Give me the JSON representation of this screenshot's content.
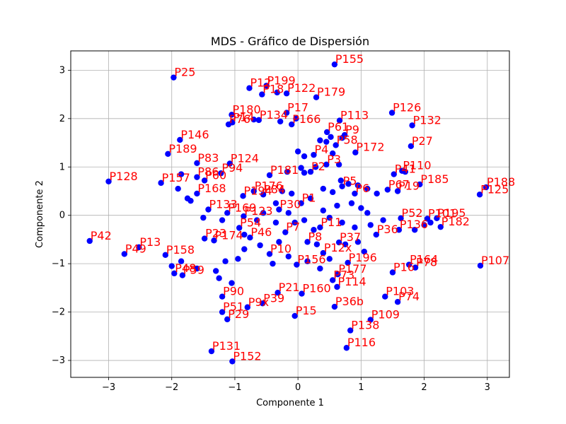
{
  "chart_data": {
    "type": "scatter",
    "title": "MDS - Gráfico de Dispersión",
    "xlabel": "Componente 1",
    "ylabel": "Componente 2",
    "xlim": [
      -3.6,
      3.35
    ],
    "ylim": [
      -3.35,
      3.4
    ],
    "xticks": [
      -3,
      -2,
      -1,
      0,
      1,
      2,
      3
    ],
    "yticks": [
      -3,
      -2,
      -1,
      0,
      1,
      2,
      3
    ],
    "grid": true,
    "marker_color": "#0000ff",
    "label_color": "#ff0000",
    "points": [
      {
        "label": "P155",
        "x": 0.58,
        "y": 3.12
      },
      {
        "label": "P25",
        "x": -1.97,
        "y": 2.85
      },
      {
        "label": "P199",
        "x": -0.5,
        "y": 2.68
      },
      {
        "label": "P12",
        "x": -0.77,
        "y": 2.63
      },
      {
        "label": "P18",
        "x": -0.57,
        "y": 2.5
      },
      {
        "label": "P122",
        "x": -0.18,
        "y": 2.52
      },
      {
        "label": "P179",
        "x": 0.29,
        "y": 2.44
      },
      {
        "label": "P180",
        "x": -1.05,
        "y": 2.08
      },
      {
        "label": "P14",
        "x": -1.04,
        "y": 1.92
      },
      {
        "label": "P76",
        "x": -1.1,
        "y": 1.88
      },
      {
        "label": "P17",
        "x": -0.18,
        "y": 2.12
      },
      {
        "label": "P134",
        "x": -0.62,
        "y": 1.97
      },
      {
        "label": "P166",
        "x": -0.1,
        "y": 1.88
      },
      {
        "label": "P113",
        "x": 0.66,
        "y": 1.96
      },
      {
        "label": "P126",
        "x": 1.49,
        "y": 2.12
      },
      {
        "label": "P132",
        "x": 1.81,
        "y": 1.86
      },
      {
        "label": "P61",
        "x": 0.46,
        "y": 1.72
      },
      {
        "label": "P9",
        "x": 0.74,
        "y": 1.66
      },
      {
        "label": "P146",
        "x": -1.87,
        "y": 1.56
      },
      {
        "label": "P58",
        "x": 0.6,
        "y": 1.45
      },
      {
        "label": "P27",
        "x": 1.79,
        "y": 1.43
      },
      {
        "label": "P189",
        "x": -2.06,
        "y": 1.27
      },
      {
        "label": "P172",
        "x": 0.91,
        "y": 1.3
      },
      {
        "label": "P83",
        "x": -1.6,
        "y": 1.08
      },
      {
        "label": "P124",
        "x": -1.08,
        "y": 1.07
      },
      {
        "label": "P128",
        "x": -3.0,
        "y": 0.7
      },
      {
        "label": "P157",
        "x": -2.17,
        "y": 0.67
      },
      {
        "label": "P94",
        "x": -1.22,
        "y": 0.87
      },
      {
        "label": "P181",
        "x": -0.45,
        "y": 0.83
      },
      {
        "label": "P110",
        "x": 1.65,
        "y": 0.92
      },
      {
        "label": "P41",
        "x": 1.52,
        "y": 0.85
      },
      {
        "label": "P185",
        "x": 1.93,
        "y": 0.64
      },
      {
        "label": "P188",
        "x": 2.98,
        "y": 0.58
      },
      {
        "label": "P125",
        "x": 2.88,
        "y": 0.43
      },
      {
        "label": "P60",
        "x": -1.48,
        "y": 0.72
      },
      {
        "label": "P86",
        "x": -1.6,
        "y": 0.79
      },
      {
        "label": "P84",
        "x": -0.55,
        "y": 0.43
      },
      {
        "label": "P176",
        "x": -0.7,
        "y": 0.5
      },
      {
        "label": "P168",
        "x": -1.6,
        "y": 0.45
      },
      {
        "label": "P67",
        "x": 1.42,
        "y": 0.53
      },
      {
        "label": "P19",
        "x": 1.58,
        "y": 0.5
      },
      {
        "label": "P194",
        "x": -0.87,
        "y": 0.4
      },
      {
        "label": "P133",
        "x": -1.42,
        "y": 0.12
      },
      {
        "label": "P169",
        "x": -1.12,
        "y": 0.05
      },
      {
        "label": "P123",
        "x": -0.86,
        "y": -0.02
      },
      {
        "label": "P52",
        "x": 1.63,
        "y": -0.06
      },
      {
        "label": "P101",
        "x": 2.05,
        "y": -0.07
      },
      {
        "label": "P195",
        "x": 2.2,
        "y": -0.06
      },
      {
        "label": "P182",
        "x": 2.26,
        "y": -0.24
      },
      {
        "label": "P42",
        "x": -3.3,
        "y": -0.53
      },
      {
        "label": "P13",
        "x": -2.52,
        "y": -0.66
      },
      {
        "label": "P49",
        "x": -2.75,
        "y": -0.8
      },
      {
        "label": "P23",
        "x": -1.48,
        "y": -0.48
      },
      {
        "label": "P174",
        "x": -1.33,
        "y": -0.52
      },
      {
        "label": "P54",
        "x": -0.93,
        "y": -0.26
      },
      {
        "label": "P46",
        "x": -0.76,
        "y": -0.46
      },
      {
        "label": "P158",
        "x": -2.1,
        "y": -0.82
      },
      {
        "label": "P48",
        "x": -1.96,
        "y": -1.2
      },
      {
        "label": "P59",
        "x": -1.83,
        "y": -1.24
      },
      {
        "label": "P36",
        "x": 1.24,
        "y": -0.4
      },
      {
        "label": "P136",
        "x": 1.6,
        "y": -0.3
      },
      {
        "label": "P164",
        "x": 1.76,
        "y": -1.02
      },
      {
        "label": "P78",
        "x": 1.86,
        "y": -1.08
      },
      {
        "label": "P107",
        "x": 2.89,
        "y": -1.04
      },
      {
        "label": "P16",
        "x": 1.5,
        "y": -1.18
      },
      {
        "label": "P196",
        "x": 0.79,
        "y": -0.98
      },
      {
        "label": "P177",
        "x": 0.63,
        "y": -1.22
      },
      {
        "label": "P73",
        "x": 0.55,
        "y": -1.34
      },
      {
        "label": "P114",
        "x": 0.62,
        "y": -1.48
      },
      {
        "label": "P103",
        "x": 1.38,
        "y": -1.68
      },
      {
        "label": "P74",
        "x": 1.58,
        "y": -1.79
      },
      {
        "label": "P36b",
        "x": 0.58,
        "y": -1.89
      },
      {
        "label": "P109",
        "x": 1.15,
        "y": -2.16
      },
      {
        "label": "P138",
        "x": 0.83,
        "y": -2.38
      },
      {
        "label": "P116",
        "x": 0.77,
        "y": -2.74
      },
      {
        "label": "P21",
        "x": -0.32,
        "y": -1.6
      },
      {
        "label": "P160",
        "x": 0.06,
        "y": -1.62
      },
      {
        "label": "P39",
        "x": -0.56,
        "y": -1.82
      },
      {
        "label": "P9x",
        "x": -0.8,
        "y": -1.9
      },
      {
        "label": "P15",
        "x": -0.05,
        "y": -2.08
      },
      {
        "label": "P51",
        "x": -1.2,
        "y": -2.0
      },
      {
        "label": "P29",
        "x": -1.12,
        "y": -2.15
      },
      {
        "label": "P90",
        "x": -1.2,
        "y": -1.68
      },
      {
        "label": "P131",
        "x": -1.37,
        "y": -2.81
      },
      {
        "label": "P152",
        "x": -1.04,
        "y": -3.02
      },
      {
        "label": "P156",
        "x": -0.02,
        "y": -1.02
      },
      {
        "label": "P37",
        "x": 0.65,
        "y": -0.56
      },
      {
        "label": "P12x",
        "x": 0.4,
        "y": -0.78
      },
      {
        "label": "P1",
        "x": 0.05,
        "y": 0.25
      },
      {
        "label": "P30",
        "x": -0.3,
        "y": 0.12
      },
      {
        "label": "P2",
        "x": 0.2,
        "y": 0.9
      },
      {
        "label": "P3",
        "x": 0.45,
        "y": 1.05
      },
      {
        "label": "P4",
        "x": 0.25,
        "y": 1.25
      },
      {
        "label": "P5",
        "x": 0.7,
        "y": 0.6
      },
      {
        "label": "P6",
        "x": 0.9,
        "y": 0.45
      },
      {
        "label": "P7",
        "x": -0.2,
        "y": -0.35
      },
      {
        "label": "P8",
        "x": 0.15,
        "y": -0.55
      },
      {
        "label": "P10",
        "x": -0.45,
        "y": -0.8
      },
      {
        "label": "P11",
        "x": 0.35,
        "y": -0.25
      }
    ],
    "extra_points": [
      [
        -0.33,
        2.54
      ],
      [
        -0.28,
        1.94
      ],
      [
        -0.03,
        2.0
      ],
      [
        0.45,
        1.52
      ],
      [
        0.52,
        1.62
      ],
      [
        0.35,
        1.55
      ],
      [
        0.0,
        1.32
      ],
      [
        0.1,
        1.22
      ],
      [
        0.05,
        0.98
      ],
      [
        0.28,
        1.0
      ],
      [
        0.55,
        1.28
      ],
      [
        0.1,
        0.88
      ],
      [
        -0.17,
        0.9
      ],
      [
        0.68,
        0.72
      ],
      [
        0.8,
        0.65
      ],
      [
        0.95,
        0.62
      ],
      [
        1.1,
        0.55
      ],
      [
        1.25,
        0.45
      ],
      [
        0.55,
        0.48
      ],
      [
        0.4,
        0.55
      ],
      [
        0.62,
        0.2
      ],
      [
        0.85,
        0.25
      ],
      [
        1.0,
        0.15
      ],
      [
        1.1,
        0.05
      ],
      [
        -0.1,
        0.45
      ],
      [
        0.2,
        0.35
      ],
      [
        0.4,
        0.1
      ],
      [
        0.5,
        -0.05
      ],
      [
        0.7,
        -0.15
      ],
      [
        0.9,
        -0.25
      ],
      [
        1.15,
        -0.2
      ],
      [
        1.35,
        -0.1
      ],
      [
        -0.15,
        0.05
      ],
      [
        -0.05,
        -0.15
      ],
      [
        0.1,
        -0.1
      ],
      [
        0.25,
        -0.3
      ],
      [
        -0.35,
        -0.15
      ],
      [
        -0.55,
        0.05
      ],
      [
        -0.65,
        -0.1
      ],
      [
        -0.3,
        -0.55
      ],
      [
        -0.6,
        -0.62
      ],
      [
        -0.85,
        -0.7
      ],
      [
        -0.95,
        -0.9
      ],
      [
        -1.15,
        -0.95
      ],
      [
        -0.4,
        -1.0
      ],
      [
        -0.15,
        -0.85
      ],
      [
        0.15,
        -0.95
      ],
      [
        0.35,
        -1.1
      ],
      [
        0.5,
        -0.9
      ],
      [
        0.75,
        -0.6
      ],
      [
        0.95,
        -0.55
      ],
      [
        1.05,
        -0.75
      ],
      [
        -1.25,
        -1.3
      ],
      [
        -1.05,
        -1.4
      ],
      [
        -1.3,
        -1.15
      ],
      [
        -1.6,
        -1.1
      ],
      [
        -1.85,
        -0.95
      ],
      [
        -2.0,
        -1.05
      ],
      [
        -1.75,
        0.35
      ],
      [
        -1.9,
        0.55
      ],
      [
        -1.7,
        0.3
      ],
      [
        -1.5,
        -0.05
      ],
      [
        -1.2,
        -0.1
      ],
      [
        -0.85,
        -0.4
      ],
      [
        1.85,
        -0.3
      ],
      [
        2.0,
        -0.2
      ],
      [
        1.7,
        0.9
      ],
      [
        2.1,
        -0.15
      ],
      [
        -1.85,
        0.85
      ],
      [
        -0.7,
        1.98
      ],
      [
        0.7,
        1.6
      ],
      [
        0.65,
        1.05
      ],
      [
        -0.35,
        0.25
      ],
      [
        -0.25,
        0.5
      ],
      [
        0.3,
        -0.6
      ]
    ]
  }
}
